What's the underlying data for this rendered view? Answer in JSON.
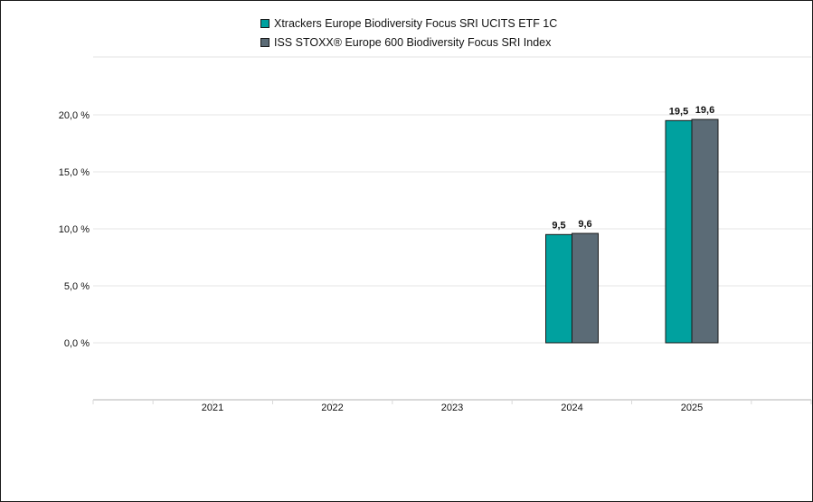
{
  "chart_data": {
    "type": "bar",
    "categories": [
      "2021",
      "2022",
      "2023",
      "2024",
      "2025"
    ],
    "series": [
      {
        "name": "Xtrackers Europe Biodiversity Focus SRI UCITS ETF 1C",
        "color": "#00a19f",
        "values": [
          null,
          null,
          null,
          9.5,
          19.5
        ],
        "labels": [
          "",
          "",
          "",
          "9,5",
          "19,5"
        ]
      },
      {
        "name": "ISS STOXX® Europe 600 Biodiversity Focus SRI Index",
        "color": "#5b6b76",
        "values": [
          null,
          null,
          null,
          9.6,
          19.6
        ],
        "labels": [
          "",
          "",
          "",
          "9,6",
          "19,6"
        ]
      }
    ],
    "yticks": [
      0,
      5,
      10,
      15,
      20
    ],
    "ytick_labels": [
      "0,0 %",
      "5,0 %",
      "10,0 %",
      "15,0 %",
      "20,0 %"
    ],
    "ylim": [
      -5,
      25
    ],
    "grid": true,
    "legend_position": "top-center"
  }
}
